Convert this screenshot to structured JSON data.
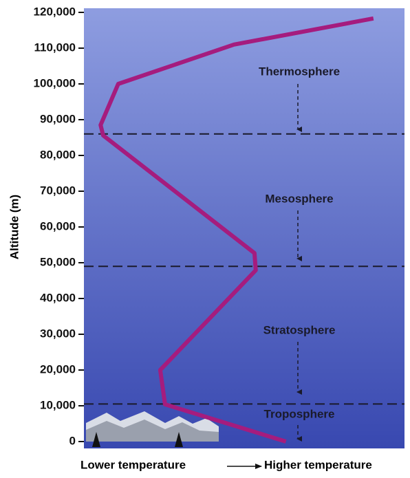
{
  "chart_data": {
    "type": "line",
    "y_label": "Altitude (m)",
    "x_label_low": "Lower temperature",
    "x_label_high": "Higher temperature",
    "x": [
      63,
      25.3,
      23.8,
      53.6,
      53.2,
      6,
      5.2,
      10.7,
      46.8,
      90.3
    ],
    "values": [
      0,
      10400,
      20000,
      47900,
      52700,
      85600,
      88500,
      100000,
      111000,
      118300
    ],
    "color": "#a51c7e",
    "xlim": [
      0,
      100
    ],
    "ylim": [
      0,
      120000
    ],
    "yticks": [
      0,
      {
        "value": 10000,
        "label": "10,000"
      },
      {
        "value": 20000,
        "label": "20,000"
      },
      {
        "value": 30000,
        "label": "30,000"
      },
      {
        "value": 40000,
        "label": "40,000"
      },
      {
        "value": 50000,
        "label": "50,000"
      },
      {
        "value": 60000,
        "label": "60,000"
      },
      {
        "value": 70000,
        "label": "70,000"
      },
      {
        "value": 80000,
        "label": "80,000"
      },
      {
        "value": 90000,
        "label": "90,000"
      },
      {
        "value": 100000,
        "label": "100,000"
      },
      {
        "value": 110000,
        "label": "110,000"
      },
      {
        "value": 120000,
        "label": "120,000"
      }
    ],
    "boundaries": [
      86000,
      49000,
      10500
    ],
    "annotations": [
      "Thermosphere",
      "Mesosphere",
      "Stratosphere",
      "Troposphere"
    ]
  }
}
